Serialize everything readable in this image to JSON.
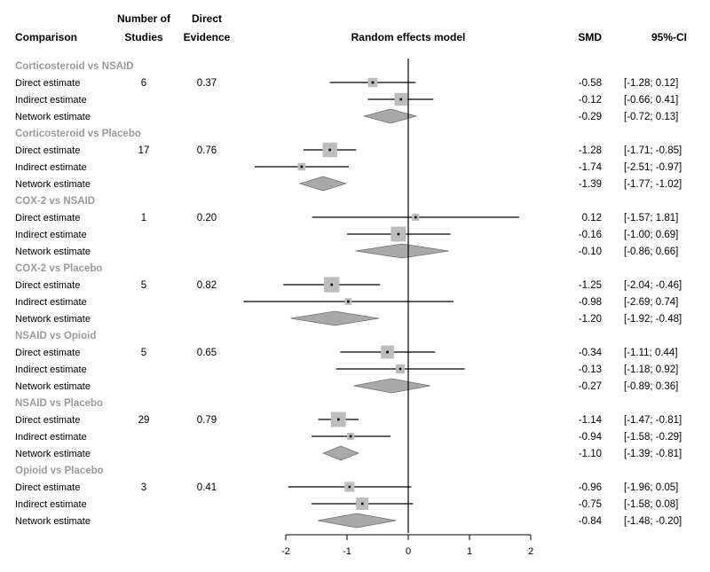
{
  "headers": {
    "comparison": "Comparison",
    "studies_line1": "Number of",
    "studies_line2": "Studies",
    "evidence_line1": "Direct",
    "evidence_line2": "Evidence",
    "model": "Random effects model",
    "smd": "SMD",
    "ci": "95%-CI"
  },
  "colors": {
    "box": "#bdbdbd",
    "diamond": "#a9a9a9",
    "group_title": "#9a9a9a"
  },
  "chart_data": {
    "type": "forest",
    "xlim": [
      -2,
      2
    ],
    "null_line": 0,
    "ticks": [
      -2,
      -1,
      0,
      1,
      2
    ],
    "tick_labels": [
      "-2",
      "-1",
      "0",
      "1",
      "2"
    ],
    "groups": [
      {
        "title": "Corticosteroid vs NSAID",
        "rows": [
          {
            "label": "Direct estimate",
            "studies": "6",
            "evidence": "0.37",
            "est": -0.58,
            "lo": -1.28,
            "hi": 0.12,
            "smd_text": "-0.58",
            "ci_text": "[-1.28; 0.12]",
            "kind": "box",
            "w": 0.37
          },
          {
            "label": "Indirect estimate",
            "studies": "",
            "evidence": "",
            "est": -0.12,
            "lo": -0.66,
            "hi": 0.41,
            "smd_text": "-0.12",
            "ci_text": "[-0.66; 0.41]",
            "kind": "box",
            "w": 0.63
          },
          {
            "label": "Network estimate",
            "studies": "",
            "evidence": "",
            "est": -0.29,
            "lo": -0.72,
            "hi": 0.13,
            "smd_text": "-0.29",
            "ci_text": "[-0.72; 0.13]",
            "kind": "diamond"
          }
        ]
      },
      {
        "title": "Corticosteroid vs Placebo",
        "rows": [
          {
            "label": "Direct estimate",
            "studies": "17",
            "evidence": "0.76",
            "est": -1.28,
            "lo": -1.71,
            "hi": -0.85,
            "smd_text": "-1.28",
            "ci_text": "[-1.71; -0.85]",
            "kind": "box",
            "w": 0.76
          },
          {
            "label": "Indirect estimate",
            "studies": "",
            "evidence": "",
            "est": -1.74,
            "lo": -2.51,
            "hi": -0.97,
            "smd_text": "-1.74",
            "ci_text": "[-2.51; -0.97]",
            "kind": "box",
            "w": 0.24
          },
          {
            "label": "Network estimate",
            "studies": "",
            "evidence": "",
            "est": -1.39,
            "lo": -1.77,
            "hi": -1.02,
            "smd_text": "-1.39",
            "ci_text": "[-1.77; -1.02]",
            "kind": "diamond"
          }
        ]
      },
      {
        "title": "COX-2 vs NSAID",
        "rows": [
          {
            "label": "Direct estimate",
            "studies": "1",
            "evidence": "0.20",
            "est": 0.12,
            "lo": -1.57,
            "hi": 1.81,
            "smd_text": "0.12",
            "ci_text": "[-1.57; 1.81]",
            "kind": "box",
            "w": 0.2
          },
          {
            "label": "Indirect estimate",
            "studies": "",
            "evidence": "",
            "est": -0.16,
            "lo": -1.0,
            "hi": 0.69,
            "smd_text": "-0.16",
            "ci_text": "[-1.00; 0.69]",
            "kind": "box",
            "w": 0.8
          },
          {
            "label": "Network estimate",
            "studies": "",
            "evidence": "",
            "est": -0.1,
            "lo": -0.86,
            "hi": 0.66,
            "smd_text": "-0.10",
            "ci_text": "[-0.86; 0.66]",
            "kind": "diamond"
          }
        ]
      },
      {
        "title": "COX-2 vs Placebo",
        "rows": [
          {
            "label": "Direct estimate",
            "studies": "5",
            "evidence": "0.82",
            "est": -1.25,
            "lo": -2.04,
            "hi": -0.46,
            "smd_text": "-1.25",
            "ci_text": "[-2.04; -0.46]",
            "kind": "box",
            "w": 0.82
          },
          {
            "label": "Indirect estimate",
            "studies": "",
            "evidence": "",
            "est": -0.98,
            "lo": -2.69,
            "hi": 0.74,
            "smd_text": "-0.98",
            "ci_text": "[-2.69; 0.74]",
            "kind": "box",
            "w": 0.18
          },
          {
            "label": "Network estimate",
            "studies": "",
            "evidence": "",
            "est": -1.2,
            "lo": -1.92,
            "hi": -0.48,
            "smd_text": "-1.20",
            "ci_text": "[-1.92; -0.48]",
            "kind": "diamond"
          }
        ]
      },
      {
        "title": "NSAID vs Opioid",
        "rows": [
          {
            "label": "Direct estimate",
            "studies": "5",
            "evidence": "0.65",
            "est": -0.34,
            "lo": -1.11,
            "hi": 0.44,
            "smd_text": "-0.34",
            "ci_text": "[-1.11; 0.44]",
            "kind": "box",
            "w": 0.65
          },
          {
            "label": "Indirect estimate",
            "studies": "",
            "evidence": "",
            "est": -0.13,
            "lo": -1.18,
            "hi": 0.92,
            "smd_text": "-0.13",
            "ci_text": "[-1.18; 0.92]",
            "kind": "box",
            "w": 0.35
          },
          {
            "label": "Network estimate",
            "studies": "",
            "evidence": "",
            "est": -0.27,
            "lo": -0.89,
            "hi": 0.36,
            "smd_text": "-0.27",
            "ci_text": "[-0.89; 0.36]",
            "kind": "diamond"
          }
        ]
      },
      {
        "title": "NSAID vs Placebo",
        "rows": [
          {
            "label": "Direct estimate",
            "studies": "29",
            "evidence": "0.79",
            "est": -1.14,
            "lo": -1.47,
            "hi": -0.81,
            "smd_text": "-1.14",
            "ci_text": "[-1.47; -0.81]",
            "kind": "box",
            "w": 0.79
          },
          {
            "label": "Indirect estimate",
            "studies": "",
            "evidence": "",
            "est": -0.94,
            "lo": -1.58,
            "hi": -0.29,
            "smd_text": "-0.94",
            "ci_text": "[-1.58; -0.29]",
            "kind": "box",
            "w": 0.21
          },
          {
            "label": "Network estimate",
            "studies": "",
            "evidence": "",
            "est": -1.1,
            "lo": -1.39,
            "hi": -0.81,
            "smd_text": "-1.10",
            "ci_text": "[-1.39; -0.81]",
            "kind": "diamond"
          }
        ]
      },
      {
        "title": "Opioid vs Placebo",
        "rows": [
          {
            "label": "Direct estimate",
            "studies": "3",
            "evidence": "0.41",
            "est": -0.96,
            "lo": -1.96,
            "hi": 0.05,
            "smd_text": "-0.96",
            "ci_text": "[-1.96; 0.05]",
            "kind": "box",
            "w": 0.41
          },
          {
            "label": "Indirect estimate",
            "studies": "",
            "evidence": "",
            "est": -0.75,
            "lo": -1.58,
            "hi": 0.08,
            "smd_text": "-0.75",
            "ci_text": "[-1.58; 0.08]",
            "kind": "box",
            "w": 0.59
          },
          {
            "label": "Network estimate",
            "studies": "",
            "evidence": "",
            "est": -0.84,
            "lo": -1.48,
            "hi": -0.2,
            "smd_text": "-0.84",
            "ci_text": "[-1.48; -0.20]",
            "kind": "diamond"
          }
        ]
      }
    ]
  }
}
